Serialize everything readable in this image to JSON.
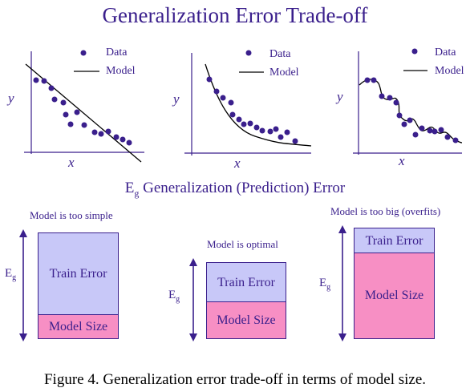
{
  "title": "Generalization Error Trade-off",
  "plots": [
    {
      "y_label": "y",
      "x_label": "x",
      "legend_data": "Data",
      "legend_model": "Model"
    },
    {
      "y_label": "y",
      "x_label": "x",
      "legend_data": "Data",
      "legend_model": "Model"
    },
    {
      "y_label": "y",
      "x_label": "x",
      "legend_data": "Data",
      "legend_model": "Model"
    }
  ],
  "eg_title": {
    "symbol": "E",
    "subscript": "g",
    "text": "Generalization (Prediction) Error"
  },
  "scenarios": [
    {
      "caption": "Model is too simple",
      "eg_symbol": "E",
      "eg_sub": "g",
      "train_label": "Train Error",
      "model_label": "Model Size",
      "train_fraction": 0.75,
      "model_fraction": 0.25
    },
    {
      "caption": "Model is optimal",
      "eg_symbol": "E",
      "eg_sub": "g",
      "train_label": "Train Error",
      "model_label": "Model Size",
      "train_fraction": 0.52,
      "model_fraction": 0.48
    },
    {
      "caption": "Model is too big (overfits)",
      "eg_symbol": "E",
      "eg_sub": "g",
      "train_label": "Train Error",
      "model_label": "Model Size",
      "train_fraction": 0.23,
      "model_fraction": 0.77
    }
  ],
  "figure_caption": "Figure 4. Generalization error trade-off in terms of model size.",
  "colors": {
    "ink": "#3a1f8c",
    "train": "#c8c8f8",
    "model": "#f78fc4",
    "dot": "#3a1f8c"
  }
}
